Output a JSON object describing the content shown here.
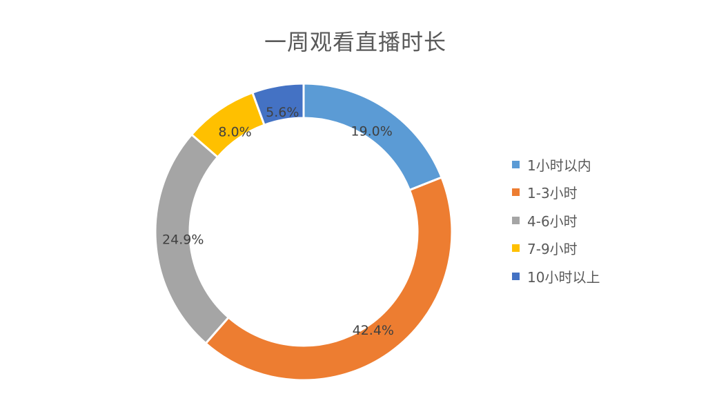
{
  "chart_data": {
    "type": "pie",
    "title": "一周观看直播时长",
    "donut": true,
    "legend_position": "right",
    "slices": [
      {
        "label": "1小时以内",
        "value": 19.0,
        "value_label": "19.0%",
        "color": "#5B9BD5"
      },
      {
        "label": "1-3小时",
        "value": 42.4,
        "value_label": "42.4%",
        "color": "#ED7D31"
      },
      {
        "label": "4-6小时",
        "value": 24.9,
        "value_label": "24.9%",
        "color": "#A5A5A5"
      },
      {
        "label": "7-9小时",
        "value": 8.0,
        "value_label": "8.0%",
        "color": "#FFC000"
      },
      {
        "label": "10小时以上",
        "value": 5.6,
        "value_label": "5.6%",
        "color": "#4472C4"
      }
    ]
  }
}
